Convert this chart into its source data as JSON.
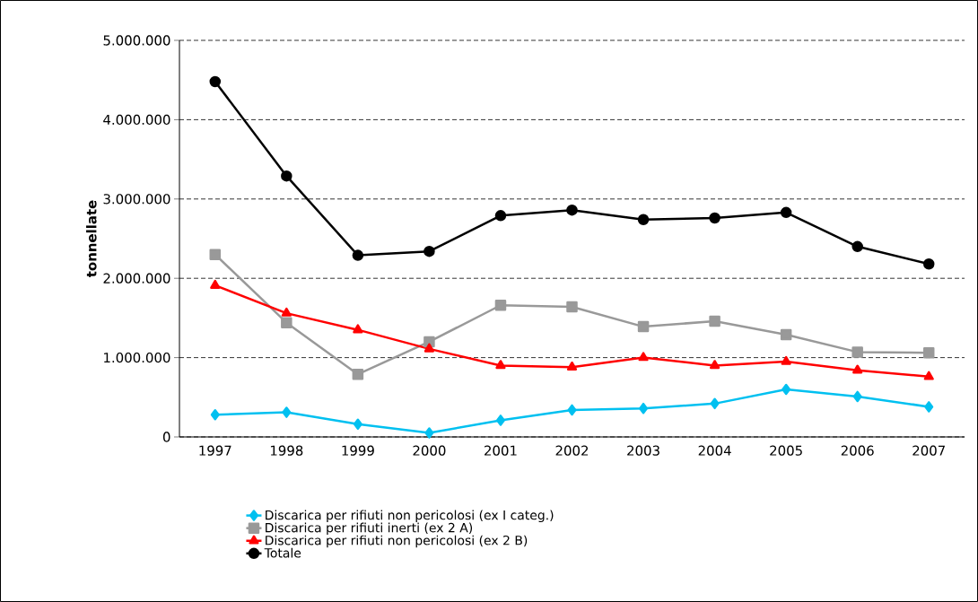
{
  "chart_data": {
    "type": "line",
    "ylabel": "tonnellate",
    "categories": [
      "1997",
      "1998",
      "1999",
      "2000",
      "2001",
      "2002",
      "2003",
      "2004",
      "2005",
      "2006",
      "2007"
    ],
    "series": [
      {
        "name": "Discarica per rifiuti non pericolosi (ex I categ.)",
        "color": "#00c0f0",
        "marker": "diamond",
        "values": [
          280000,
          310000,
          160000,
          50000,
          210000,
          340000,
          360000,
          420000,
          600000,
          510000,
          380000
        ]
      },
      {
        "name": "Discarica per rifiuti inerti (ex 2 A)",
        "color": "#999999",
        "marker": "square",
        "values": [
          2300000,
          1440000,
          790000,
          1200000,
          1660000,
          1640000,
          1390000,
          1460000,
          1290000,
          1070000,
          1060000
        ]
      },
      {
        "name": "Discarica per rifiuti non pericolosi (ex 2 B)",
        "color": "#ff0000",
        "marker": "triangle",
        "values": [
          1910000,
          1560000,
          1350000,
          1110000,
          900000,
          880000,
          1000000,
          900000,
          950000,
          840000,
          760000
        ]
      },
      {
        "name": "Totale",
        "color": "#000000",
        "marker": "circle",
        "values": [
          4480000,
          3290000,
          2290000,
          2340000,
          2790000,
          2860000,
          2740000,
          2760000,
          2830000,
          2400000,
          2180000
        ]
      }
    ],
    "ylim": [
      0,
      5000000
    ],
    "yticks": [
      {
        "value": 0,
        "label": "0"
      },
      {
        "value": 1000000,
        "label": "1.000.000"
      },
      {
        "value": 2000000,
        "label": "2.000.000"
      },
      {
        "value": 3000000,
        "label": "3.000.000"
      },
      {
        "value": 4000000,
        "label": "4.000.000"
      },
      {
        "value": 5000000,
        "label": "5.000.000"
      }
    ],
    "grid": "y",
    "legend": "bottom",
    "line_style": "solid"
  }
}
